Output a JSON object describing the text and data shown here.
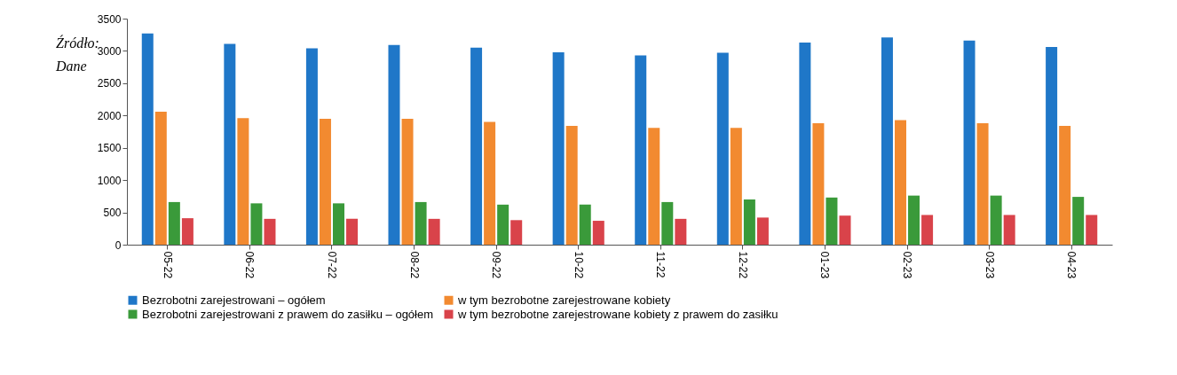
{
  "chart_data": {
    "type": "bar",
    "categories": [
      "05-22",
      "06-22",
      "07-22",
      "08-22",
      "09-22",
      "10-22",
      "11-22",
      "12-22",
      "01-23",
      "02-23",
      "03-23",
      "04-23"
    ],
    "series": [
      {
        "name": "Bezrobotni zarejestrowani – ogółem",
        "color": "#1f77c8",
        "values": [
          3270,
          3110,
          3040,
          3090,
          3050,
          2980,
          2930,
          2970,
          3130,
          3210,
          3160,
          3060
        ]
      },
      {
        "name": "w tym bezrobotne zarejestrowane kobiety",
        "color": "#f28a30",
        "values": [
          2060,
          1960,
          1950,
          1950,
          1900,
          1840,
          1810,
          1810,
          1880,
          1930,
          1880,
          1840
        ]
      },
      {
        "name": "Bezrobotni zarejestrowani z prawem do zasiłku – ogółem",
        "color": "#3a9a3a",
        "values": [
          660,
          640,
          640,
          660,
          620,
          620,
          660,
          700,
          730,
          760,
          760,
          740
        ]
      },
      {
        "name": "w tym bezrobotne zarejestrowane kobiety z prawem do zasiłku",
        "color": "#d9434a",
        "values": [
          410,
          400,
          400,
          400,
          380,
          370,
          400,
          420,
          450,
          460,
          460,
          460
        ]
      }
    ],
    "ylim": [
      0,
      3500
    ],
    "yticks": [
      0,
      500,
      1000,
      1500,
      2000,
      2500,
      3000,
      3500
    ],
    "grid": false,
    "legend": "bottom",
    "annotations": [
      "Źródło: Dane"
    ]
  }
}
